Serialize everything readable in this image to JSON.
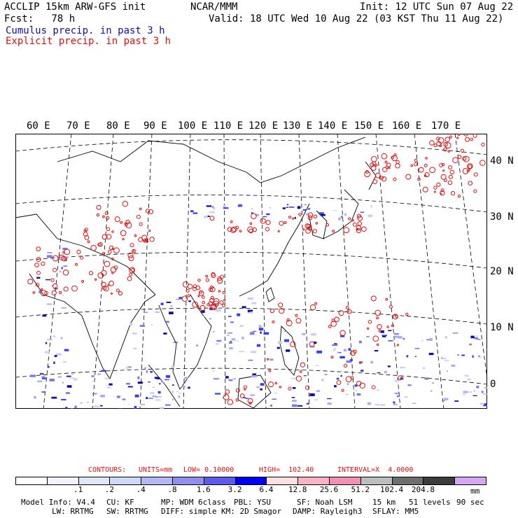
{
  "header": {
    "line1_left": "ACCLIP 15km ARW-GFS init",
    "line1_center": "NCAR/MMM",
    "line1_right": "Init: 12 UTC Sun 07 Aug 22",
    "line2_left": "Fcst:   78 h",
    "line2_right": "Valid: 18 UTC Wed 10 Aug 22 (03 KST Thu 11 Aug 22)",
    "legend_cumulus": "Cumulus precip. in past 3 h",
    "legend_explicit": "Explicit precip. in past 3 h"
  },
  "map": {
    "lon_labels": [
      "60 E",
      "70 E",
      "80 E",
      "90 E",
      "100 E",
      "110 E",
      "120 E",
      "130 E",
      "140 E",
      "150 E",
      "160 E",
      "170 E"
    ],
    "lat_labels": [
      "40 N",
      "30 N",
      "20 N",
      "10 N",
      "0"
    ]
  },
  "contours": {
    "label": "CONTOURS:",
    "units": "UNITS=mm",
    "low": "LOW= 0.10000",
    "high": "HIGH=  102.40",
    "interval": "INTERVAL=X  4.0000"
  },
  "colorbar": {
    "colors": [
      "#ffffff",
      "#f2f2ff",
      "#e2e6fa",
      "#d0d8f8",
      "#b4b8f4",
      "#9090ec",
      "#5c5ce8",
      "#0000f0",
      "#fde0e4",
      "#f8b4c4",
      "#f090b4",
      "#bebebe",
      "#6e6e6e",
      "#3c3c3c",
      "#d4a8f4"
    ],
    "labels": [
      ".1",
      ".2",
      ".4",
      ".8",
      "1.6",
      "3.2",
      "6.4",
      "12.8",
      "25.6",
      "51.2",
      "102.4",
      "204.8"
    ],
    "unit": "mm"
  },
  "model_info": {
    "line1": [
      "Model Info: V4.4",
      "CU: KF",
      "MP: WDM 6class",
      "PBL: YSU",
      "SF: Noah LSM",
      "15 km",
      "51 levels",
      "90 sec"
    ],
    "line2": [
      "LW: RRTMG",
      "SW: RRTMG",
      "DIFF: simple",
      "KM: 2D Smagor",
      "DAMP: Rayleigh3",
      "SFLAY: MM5"
    ]
  },
  "palette": {
    "cumulus": "#1010a0",
    "explicit": "#e01010"
  }
}
